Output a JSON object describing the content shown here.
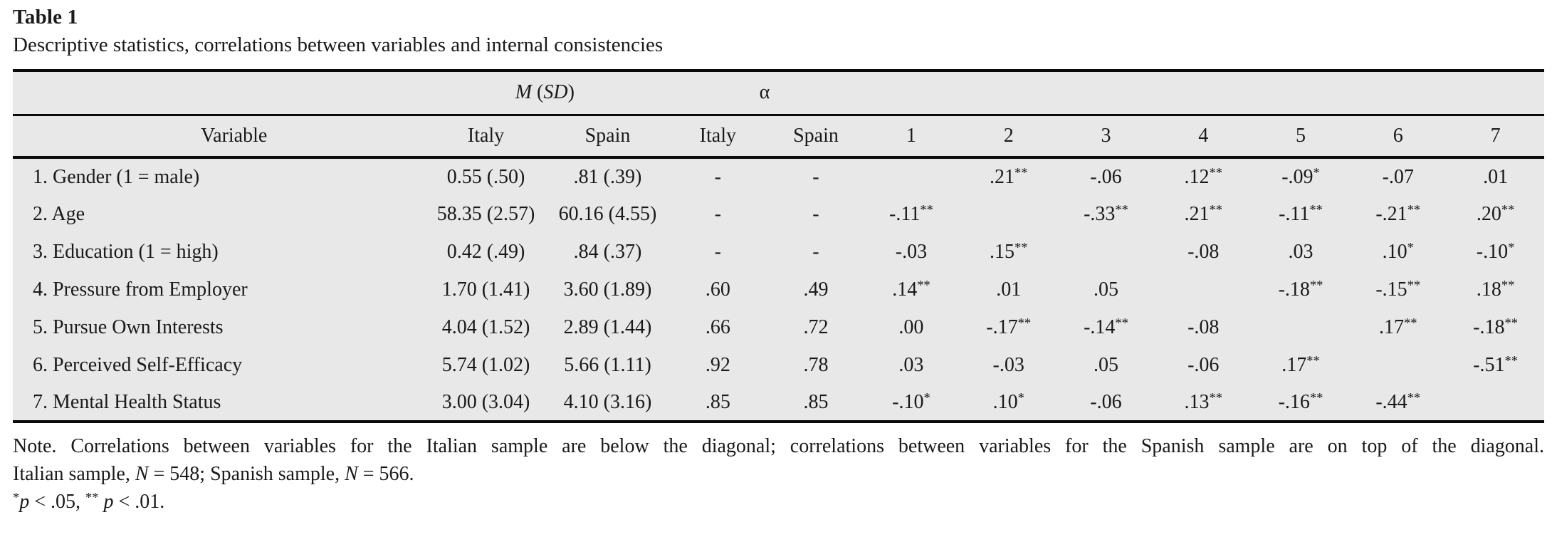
{
  "title": "Table 1",
  "subtitle": "Descriptive statistics, correlations between variables and internal consistencies",
  "table": {
    "group_headers": {
      "msd_parts": [
        "M",
        " (",
        "SD",
        ")"
      ],
      "alpha": "α"
    },
    "columns": [
      "Variable",
      "Italy",
      "Spain",
      "Italy",
      "Spain",
      "1",
      "2",
      "3",
      "4",
      "5",
      "6",
      "7"
    ],
    "rows": [
      {
        "variable": "1. Gender (1 = male)",
        "m_italy": "0.55 (.50)",
        "m_spain": ".81 (.39)",
        "a_italy": "-",
        "a_spain": "-",
        "c": [
          "",
          ".21**",
          "-.06",
          ".12**",
          "-.09*",
          "-.07",
          ".01"
        ]
      },
      {
        "variable": "2. Age",
        "m_italy": "58.35 (2.57)",
        "m_spain": "60.16 (4.55)",
        "a_italy": "-",
        "a_spain": "-",
        "c": [
          "-.11**",
          "",
          "-.33**",
          ".21**",
          "-.11**",
          "-.21**",
          ".20**"
        ]
      },
      {
        "variable": "3. Education (1 = high)",
        "m_italy": "0.42 (.49)",
        "m_spain": ".84 (.37)",
        "a_italy": "-",
        "a_spain": "-",
        "c": [
          "-.03",
          ".15**",
          "",
          "-.08",
          ".03",
          ".10*",
          "-.10*"
        ]
      },
      {
        "variable": "4. Pressure from Employer",
        "m_italy": "1.70 (1.41)",
        "m_spain": "3.60 (1.89)",
        "a_italy": ".60",
        "a_spain": ".49",
        "c": [
          ".14**",
          ".01",
          ".05",
          "",
          "-.18**",
          "-.15**",
          ".18**"
        ]
      },
      {
        "variable": "5. Pursue Own Interests",
        "m_italy": "4.04 (1.52)",
        "m_spain": "2.89 (1.44)",
        "a_italy": ".66",
        "a_spain": ".72",
        "c": [
          ".00",
          "-.17**",
          "-.14**",
          "-.08",
          "",
          ".17**",
          "-.18**"
        ]
      },
      {
        "variable": "6. Perceived Self-Efficacy",
        "m_italy": "5.74 (1.02)",
        "m_spain": "5.66 (1.11)",
        "a_italy": ".92",
        "a_spain": ".78",
        "c": [
          ".03",
          "-.03",
          ".05",
          "-.06",
          ".17**",
          "",
          "-.51**"
        ]
      },
      {
        "variable": "7. Mental Health Status",
        "m_italy": "3.00 (3.04)",
        "m_spain": "4.10 (3.16)",
        "a_italy": ".85",
        "a_spain": ".85",
        "c": [
          "-.10*",
          ".10*",
          "-.06",
          ".13**",
          "-.16**",
          "-.44**",
          ""
        ]
      }
    ]
  },
  "notes": {
    "line1": "Note. Correlations between variables for the Italian sample are below the diagonal; correlations between variables for the Spanish sample are on top of the diagonal.",
    "line2_parts": [
      "Italian sample, ",
      "N",
      " = 548; Spanish sample, ",
      "N",
      " = 566."
    ],
    "line3_parts": [
      "*",
      "p",
      " < .05, ",
      "**",
      " ",
      "p",
      " < .01."
    ]
  },
  "colors": {
    "table_bg": "#e8e8e8",
    "rule": "#0a0a0a",
    "text": "#1a1a1a"
  }
}
